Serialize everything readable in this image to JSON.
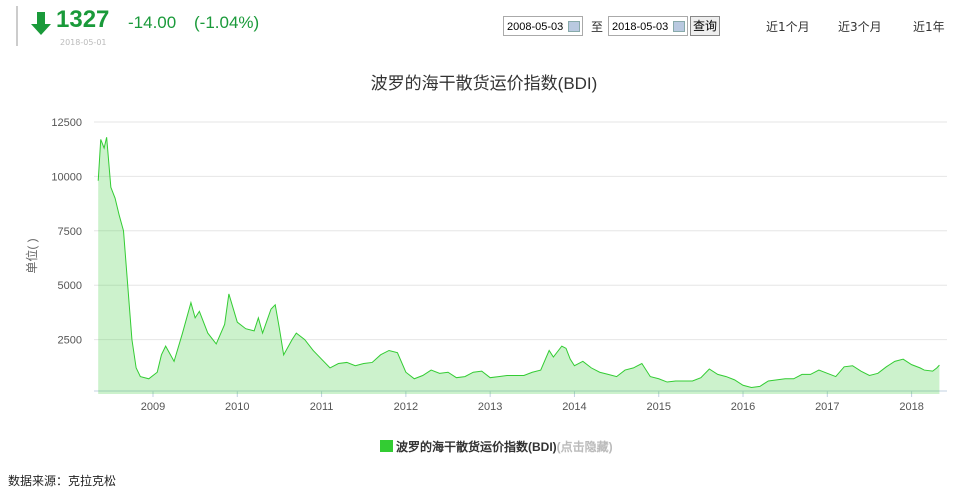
{
  "header": {
    "price": 1327,
    "change": "-14.00",
    "change_pct": "(-1.04%)",
    "date": "2018-05-01",
    "start_date": "2008-05-03",
    "separator": "至",
    "end_date": "2018-05-03",
    "query": "查询",
    "ranges": [
      "近1个月",
      "近3个月",
      "近1年"
    ]
  },
  "chart_data": {
    "type": "area",
    "title": "波罗的海干散货运价指数(BDI)",
    "y_label": "单位( )",
    "legend_hint": "(点击隐藏)",
    "x": [
      2008.35,
      2008.38,
      2008.42,
      2008.45,
      2008.5,
      2008.55,
      2008.6,
      2008.65,
      2008.7,
      2008.75,
      2008.8,
      2008.85,
      2008.95,
      2009.05,
      2009.1,
      2009.15,
      2009.25,
      2009.35,
      2009.45,
      2009.5,
      2009.55,
      2009.65,
      2009.75,
      2009.85,
      2009.9,
      2010.0,
      2010.1,
      2010.2,
      2010.25,
      2010.3,
      2010.4,
      2010.45,
      2010.5,
      2010.55,
      2010.65,
      2010.7,
      2010.8,
      2010.9,
      2011.0,
      2011.1,
      2011.2,
      2011.3,
      2011.4,
      2011.5,
      2011.6,
      2011.7,
      2011.8,
      2011.9,
      2012.0,
      2012.1,
      2012.2,
      2012.3,
      2012.4,
      2012.5,
      2012.6,
      2012.7,
      2012.8,
      2012.9,
      2013.0,
      2013.1,
      2013.2,
      2013.3,
      2013.4,
      2013.5,
      2013.6,
      2013.7,
      2013.75,
      2013.85,
      2013.9,
      2013.95,
      2014.0,
      2014.1,
      2014.2,
      2014.3,
      2014.4,
      2014.5,
      2014.6,
      2014.7,
      2014.8,
      2014.9,
      2015.0,
      2015.1,
      2015.2,
      2015.3,
      2015.4,
      2015.5,
      2015.6,
      2015.7,
      2015.8,
      2015.9,
      2016.0,
      2016.1,
      2016.2,
      2016.3,
      2016.4,
      2016.5,
      2016.6,
      2016.7,
      2016.8,
      2016.9,
      2017.0,
      2017.1,
      2017.2,
      2017.3,
      2017.4,
      2017.5,
      2017.6,
      2017.7,
      2017.8,
      2017.9,
      2018.0,
      2018.1,
      2018.15,
      2018.25,
      2018.3,
      2018.33
    ],
    "series": [
      {
        "name": "波罗的海干散货运价指数(BDI)",
        "color": "#33cc33",
        "values": [
          9800,
          11700,
          11300,
          11800,
          9500,
          9000,
          8200,
          7500,
          5000,
          2500,
          1200,
          800,
          700,
          1000,
          1800,
          2200,
          1500,
          2800,
          4200,
          3500,
          3800,
          2800,
          2300,
          3200,
          4600,
          3300,
          3000,
          2900,
          3500,
          2800,
          3900,
          4100,
          3000,
          1800,
          2500,
          2800,
          2500,
          2000,
          1600,
          1200,
          1400,
          1450,
          1300,
          1400,
          1450,
          1800,
          2000,
          1900,
          1000,
          700,
          850,
          1100,
          950,
          1000,
          750,
          800,
          1000,
          1050,
          750,
          800,
          850,
          850,
          850,
          1000,
          1100,
          2000,
          1700,
          2200,
          2100,
          1600,
          1300,
          1500,
          1200,
          1000,
          900,
          800,
          1100,
          1200,
          1400,
          800,
          700,
          550,
          600,
          600,
          600,
          750,
          1150,
          900,
          800,
          650,
          400,
          300,
          350,
          600,
          650,
          700,
          700,
          900,
          900,
          1100,
          950,
          800,
          1250,
          1300,
          1050,
          850,
          950,
          1250,
          1500,
          1600,
          1350,
          1200,
          1100,
          1050,
          1200,
          1327
        ]
      }
    ],
    "xlim": [
      2008.3,
      2018.42
    ],
    "xticks": [
      2009,
      2010,
      2011,
      2012,
      2013,
      2014,
      2015,
      2016,
      2017,
      2018
    ],
    "ylim": [
      0,
      12500
    ],
    "yticks": [
      2500,
      5000,
      7500,
      10000,
      12500
    ],
    "grid": true
  },
  "footer": "数据来源：克拉克松"
}
